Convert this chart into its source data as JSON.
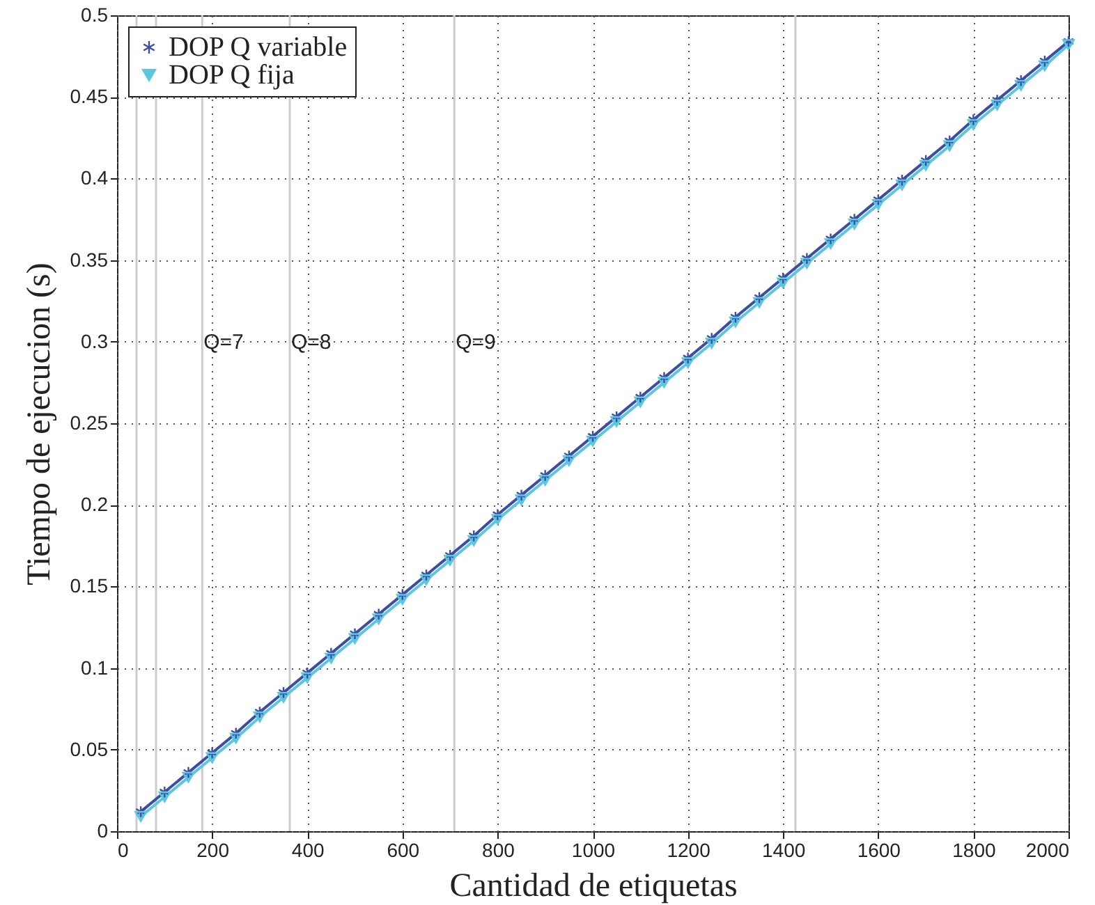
{
  "chart_data": {
    "type": "line",
    "xlabel": "Cantidad de etiquetas",
    "ylabel": "Tiempo de ejecucion (s)",
    "x": [
      50,
      100,
      150,
      200,
      250,
      300,
      350,
      400,
      450,
      500,
      550,
      600,
      650,
      700,
      750,
      800,
      850,
      900,
      950,
      1000,
      1050,
      1100,
      1150,
      1200,
      1250,
      1300,
      1350,
      1400,
      1450,
      1500,
      1550,
      1600,
      1650,
      1700,
      1750,
      1800,
      1850,
      1900,
      1950,
      2000
    ],
    "series": [
      {
        "name": "DOP Q variable",
        "color": "#3b4ea6",
        "marker": "cross",
        "values": [
          0.012,
          0.024,
          0.036,
          0.048,
          0.06,
          0.073,
          0.085,
          0.097,
          0.109,
          0.121,
          0.133,
          0.145,
          0.157,
          0.169,
          0.181,
          0.194,
          0.206,
          0.218,
          0.23,
          0.242,
          0.254,
          0.266,
          0.278,
          0.29,
          0.302,
          0.315,
          0.327,
          0.339,
          0.351,
          0.363,
          0.375,
          0.387,
          0.399,
          0.411,
          0.423,
          0.436,
          0.448,
          0.46,
          0.472,
          0.484
        ]
      },
      {
        "name": "DOP Q fija",
        "color": "#5cc6df",
        "marker": "triangle",
        "values": [
          0.009,
          0.021,
          0.033,
          0.045,
          0.057,
          0.07,
          0.082,
          0.094,
          0.106,
          0.118,
          0.13,
          0.142,
          0.154,
          0.166,
          0.178,
          0.191,
          0.203,
          0.215,
          0.227,
          0.239,
          0.251,
          0.263,
          0.275,
          0.287,
          0.299,
          0.312,
          0.324,
          0.336,
          0.348,
          0.36,
          0.372,
          0.384,
          0.396,
          0.408,
          0.42,
          0.433,
          0.445,
          0.457,
          0.469,
          0.482
        ]
      }
    ],
    "xlim": [
      0,
      2000
    ],
    "xticks": [
      0,
      200,
      400,
      600,
      800,
      1000,
      1200,
      1400,
      1600,
      1800,
      2000
    ],
    "ylim": [
      0,
      0.5
    ],
    "yticks": [
      0,
      0.05,
      0.1,
      0.15,
      0.2,
      0.25,
      0.3,
      0.35,
      0.4,
      0.45,
      0.5
    ],
    "ref_lines": [
      {
        "axis": "x",
        "value": 41,
        "label": null,
        "color": "#cccccc"
      },
      {
        "axis": "x",
        "value": 82,
        "label": null,
        "color": "#cccccc"
      },
      {
        "axis": "x",
        "value": 179,
        "label": null,
        "color": "#cccccc"
      },
      {
        "axis": "x",
        "value": 363,
        "label": null,
        "color": "#cccccc"
      },
      {
        "axis": "x",
        "value": 709,
        "label": null,
        "color": "#cccccc"
      },
      {
        "axis": "x",
        "value": 1426,
        "label": null,
        "color": "#cccccc"
      }
    ],
    "annotations": [
      {
        "text": "Q=7",
        "x": 179,
        "y": 0.3
      },
      {
        "text": "Q=8",
        "x": 363,
        "y": 0.3
      },
      {
        "text": "Q=9",
        "x": 709,
        "y": 0.3
      }
    ],
    "grid": true,
    "legend": "top left",
    "line_style": "solid"
  }
}
